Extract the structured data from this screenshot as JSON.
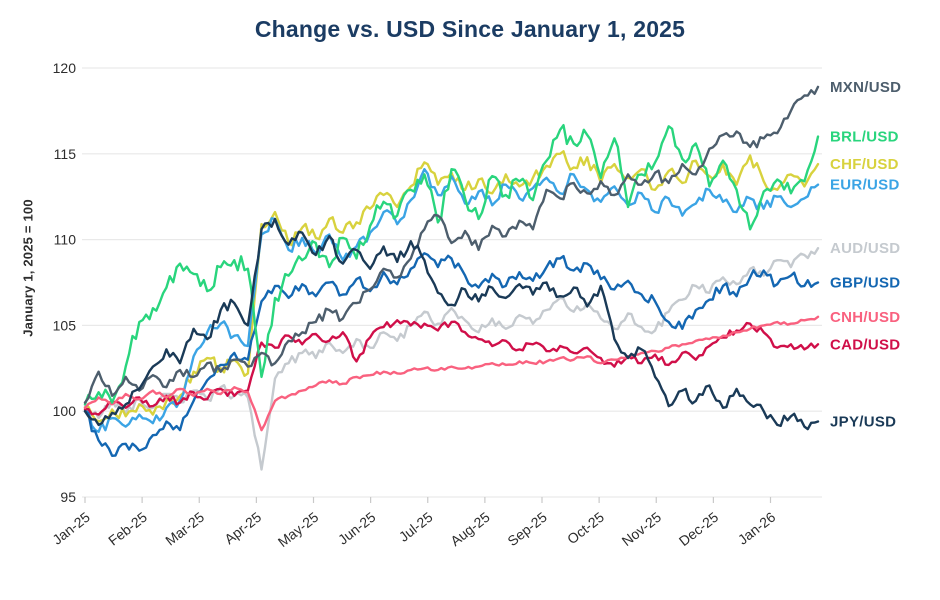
{
  "chart_data": {
    "type": "line",
    "title": "Change vs. USD Since January 1, 2025",
    "ylabel": "January 1, 2025 = 100",
    "xlabel": "",
    "ylim": [
      95,
      120
    ],
    "yticks": [
      95,
      100,
      105,
      110,
      115,
      120
    ],
    "x_tick_labels": [
      "Jan-25",
      "Feb-25",
      "Mar-25",
      "Apr-25",
      "May-25",
      "Jun-25",
      "Jul-25",
      "Aug-25",
      "Sep-25",
      "Oct-25",
      "Nov-25",
      "Dec-25",
      "Jan-26"
    ],
    "x_unit": "weekly points from Jan 1 2025 to mid-Jan 2026",
    "grid": true,
    "legend_position": "right-end-of-lines",
    "series": [
      {
        "name": "MXN/USD",
        "color": "#4d5e6d",
        "z": 7,
        "noise": 0.28,
        "values": [
          100.5,
          102.3,
          100.9,
          102.0,
          101.2,
          102.1,
          101.4,
          102.4,
          102.0,
          102.8,
          102.3,
          103.0,
          102.6,
          103.4,
          102.8,
          104.1,
          104.6,
          105.2,
          105.9,
          105.4,
          106.3,
          107.1,
          108.3,
          107.8,
          108.9,
          110.6,
          111.4,
          109.8,
          110.5,
          109.4,
          110.8,
          110.2,
          111.1,
          110.6,
          112.9,
          112.4,
          113.3,
          112.7,
          113.4,
          112.6,
          113.8,
          113.2,
          113.9,
          113.3,
          114.4,
          113.8,
          115.3,
          116.1,
          116.3,
          115.4,
          115.9,
          116.2,
          117.5,
          118.4,
          118.9
        ]
      },
      {
        "name": "BRL/USD",
        "color": "#29d57d",
        "z": 6,
        "noise": 0.5,
        "values": [
          100.4,
          101.1,
          100.5,
          102.6,
          105.2,
          106.0,
          107.2,
          108.6,
          108.0,
          107.0,
          108.4,
          108.8,
          108.3,
          102.0,
          106.6,
          107.9,
          108.8,
          109.8,
          108.4,
          110.1,
          108.9,
          110.8,
          112.2,
          111.4,
          112.9,
          113.8,
          111.0,
          114.1,
          112.4,
          111.2,
          113.7,
          112.6,
          113.4,
          112.3,
          114.6,
          116.4,
          115.6,
          116.1,
          113.6,
          115.9,
          111.9,
          113.8,
          114.5,
          116.6,
          114.7,
          115.6,
          113.1,
          114.6,
          112.9,
          110.6,
          112.8,
          113.5,
          112.7,
          113.4,
          116.0
        ]
      },
      {
        "name": "CHF/USD",
        "color": "#d8d23e",
        "z": 1,
        "noise": 0.38,
        "values": [
          100.2,
          99.4,
          100.1,
          99.7,
          100.4,
          99.8,
          100.6,
          100.9,
          102.3,
          103.1,
          102.5,
          103.0,
          102.2,
          110.9,
          111.6,
          109.8,
          110.7,
          110.1,
          111.2,
          110.4,
          111.0,
          111.8,
          112.6,
          111.9,
          113.1,
          114.5,
          113.2,
          113.9,
          112.9,
          113.5,
          112.7,
          113.8,
          113.1,
          113.6,
          114.3,
          115.0,
          114.2,
          114.8,
          113.3,
          114.4,
          113.6,
          114.1,
          112.9,
          114.0,
          113.3,
          114.6,
          113.7,
          114.4,
          113.2,
          114.9,
          113.4,
          112.9,
          113.8,
          113.1,
          114.4
        ]
      },
      {
        "name": "EUR/USD",
        "color": "#3ba4e5",
        "z": 2,
        "noise": 0.33,
        "values": [
          100.0,
          98.8,
          99.6,
          99.1,
          99.8,
          99.3,
          100.2,
          100.6,
          103.2,
          104.6,
          105.1,
          104.4,
          103.8,
          110.3,
          111.2,
          109.4,
          110.1,
          109.2,
          110.3,
          108.8,
          109.6,
          110.4,
          111.6,
          110.9,
          112.3,
          114.1,
          112.6,
          113.7,
          112.1,
          112.8,
          112.0,
          113.2,
          112.4,
          113.0,
          113.6,
          112.7,
          113.8,
          112.9,
          112.2,
          113.1,
          112.0,
          112.7,
          111.6,
          112.4,
          111.4,
          112.1,
          112.9,
          112.2,
          111.6,
          112.4,
          111.8,
          112.5,
          111.9,
          112.4,
          113.2
        ]
      },
      {
        "name": "AUD/USD",
        "color": "#c5cacf",
        "z": 0,
        "noise": 0.28,
        "values": [
          100.3,
          99.6,
          100.6,
          99.9,
          100.7,
          100.2,
          101.0,
          100.5,
          101.2,
          100.7,
          101.4,
          100.9,
          100.8,
          96.6,
          101.9,
          102.8,
          103.4,
          103.1,
          104.0,
          103.4,
          104.2,
          103.7,
          104.6,
          104.1,
          105.0,
          105.8,
          105.1,
          106.0,
          105.3,
          104.6,
          105.4,
          104.8,
          105.6,
          105.1,
          105.9,
          106.6,
          105.8,
          106.3,
          105.4,
          104.8,
          105.7,
          104.9,
          104.7,
          105.8,
          106.5,
          107.3,
          106.9,
          107.8,
          107.4,
          108.3,
          107.9,
          108.8,
          108.4,
          109.1,
          109.5
        ]
      },
      {
        "name": "GBP/USD",
        "color": "#1467b2",
        "z": 3,
        "noise": 0.33,
        "values": [
          100.0,
          98.3,
          97.4,
          98.1,
          97.7,
          98.6,
          99.4,
          98.9,
          100.6,
          101.8,
          102.7,
          103.4,
          103.0,
          106.4,
          107.3,
          106.6,
          107.4,
          106.7,
          107.5,
          106.8,
          107.7,
          107.0,
          108.1,
          107.4,
          108.3,
          109.2,
          108.4,
          108.9,
          107.9,
          107.2,
          108.0,
          107.3,
          108.1,
          107.6,
          108.4,
          108.9,
          108.2,
          108.6,
          107.7,
          107.1,
          107.6,
          106.8,
          106.4,
          105.2,
          104.8,
          105.9,
          106.5,
          107.3,
          106.7,
          107.8,
          108.2,
          107.4,
          107.9,
          107.3,
          107.5
        ]
      },
      {
        "name": "CNH/USD",
        "color": "#f9617f",
        "z": 5,
        "noise": 0.1,
        "values": [
          100.2,
          100.8,
          100.4,
          101.0,
          100.7,
          101.2,
          100.8,
          101.3,
          100.9,
          101.3,
          101.0,
          101.4,
          101.1,
          98.9,
          100.6,
          100.9,
          101.2,
          101.5,
          101.8,
          101.6,
          102.0,
          102.1,
          102.3,
          102.2,
          102.4,
          102.5,
          102.4,
          102.6,
          102.5,
          102.6,
          102.8,
          102.7,
          102.9,
          102.8,
          102.9,
          103.1,
          103.0,
          103.2,
          102.8,
          103.0,
          103.2,
          103.4,
          103.5,
          103.7,
          103.9,
          104.1,
          104.2,
          104.4,
          104.6,
          104.8,
          105.0,
          105.2,
          105.1,
          105.3,
          105.5
        ]
      },
      {
        "name": "CAD/USD",
        "color": "#d00f49",
        "z": 4,
        "noise": 0.22,
        "values": [
          100.1,
          99.8,
          100.5,
          100.2,
          100.8,
          100.3,
          100.9,
          100.5,
          101.1,
          100.7,
          101.3,
          100.9,
          101.2,
          104.0,
          103.7,
          104.4,
          103.9,
          104.5,
          104.1,
          104.6,
          102.9,
          104.3,
          104.9,
          105.3,
          105.0,
          105.1,
          104.7,
          105.2,
          104.6,
          104.2,
          103.8,
          104.1,
          103.6,
          103.9,
          103.5,
          103.8,
          103.4,
          103.7,
          103.1,
          102.6,
          103.2,
          102.8,
          103.3,
          102.7,
          103.4,
          103.0,
          103.8,
          104.3,
          104.7,
          105.1,
          104.6,
          103.7,
          103.9,
          103.6,
          103.9
        ]
      },
      {
        "name": "JPY/USD",
        "color": "#1a3a57",
        "z": 8,
        "noise": 0.3,
        "values": [
          100.0,
          99.2,
          99.9,
          100.4,
          101.3,
          102.6,
          103.6,
          102.8,
          104.8,
          104.2,
          105.9,
          106.3,
          105.0,
          110.6,
          111.2,
          109.7,
          110.4,
          109.1,
          110.2,
          108.6,
          109.4,
          108.3,
          109.6,
          108.7,
          109.9,
          108.8,
          106.9,
          106.2,
          107.1,
          106.4,
          107.2,
          106.6,
          107.4,
          106.8,
          107.5,
          106.7,
          107.2,
          106.1,
          107.3,
          104.2,
          103.1,
          103.6,
          102.0,
          100.3,
          101.2,
          100.6,
          101.5,
          100.2,
          101.3,
          100.4,
          100.0,
          99.2,
          99.7,
          99.1,
          99.4
        ]
      }
    ]
  }
}
